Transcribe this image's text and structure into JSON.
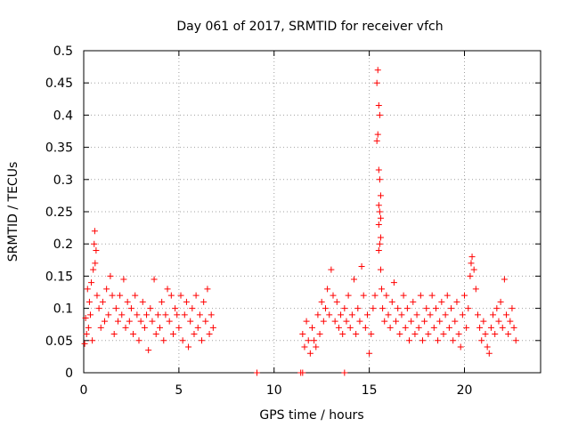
{
  "chart_data": {
    "type": "scatter",
    "title": "Day 061 of 2017, SRMTID for receiver vfch",
    "xlabel": "GPS time / hours",
    "ylabel": "SRMTID / TECUs",
    "xlim": [
      0,
      24
    ],
    "ylim": [
      0,
      0.5
    ],
    "x_ticks": [
      0,
      5,
      10,
      15,
      20
    ],
    "x_tick_labels": [
      "0",
      "5",
      "10",
      "15",
      "20"
    ],
    "y_ticks": [
      0,
      0.05,
      0.1,
      0.15,
      0.2,
      0.25,
      0.3,
      0.35,
      0.4,
      0.45,
      0.5
    ],
    "y_tick_labels": [
      "0",
      "0.05",
      "0.1",
      "0.15",
      "0.2",
      "0.25",
      "0.3",
      "0.35",
      "0.4",
      "0.45",
      "0.5"
    ],
    "grid": true,
    "marker": "plus",
    "color": "#ff0000",
    "series": [
      {
        "name": "SRMTID",
        "points": [
          [
            0.05,
            0.045
          ],
          [
            0.1,
            0.085
          ],
          [
            0.15,
            0.06
          ],
          [
            0.2,
            0.13
          ],
          [
            0.25,
            0.07
          ],
          [
            0.3,
            0.11
          ],
          [
            0.35,
            0.09
          ],
          [
            0.4,
            0.14
          ],
          [
            0.45,
            0.05
          ],
          [
            0.5,
            0.16
          ],
          [
            0.55,
            0.2
          ],
          [
            0.58,
            0.22
          ],
          [
            0.6,
            0.17
          ],
          [
            0.65,
            0.19
          ],
          [
            0.7,
            0.12
          ],
          [
            0.8,
            0.1
          ],
          [
            0.9,
            0.07
          ],
          [
            1.0,
            0.11
          ],
          [
            1.1,
            0.08
          ],
          [
            1.2,
            0.13
          ],
          [
            1.3,
            0.09
          ],
          [
            1.4,
            0.15
          ],
          [
            1.5,
            0.12
          ],
          [
            1.6,
            0.06
          ],
          [
            1.7,
            0.1
          ],
          [
            1.8,
            0.08
          ],
          [
            1.9,
            0.12
          ],
          [
            2.0,
            0.09
          ],
          [
            2.1,
            0.145
          ],
          [
            2.2,
            0.07
          ],
          [
            2.3,
            0.11
          ],
          [
            2.4,
            0.08
          ],
          [
            2.5,
            0.1
          ],
          [
            2.6,
            0.06
          ],
          [
            2.7,
            0.12
          ],
          [
            2.8,
            0.09
          ],
          [
            2.9,
            0.05
          ],
          [
            3.0,
            0.08
          ],
          [
            3.1,
            0.11
          ],
          [
            3.2,
            0.07
          ],
          [
            3.3,
            0.09
          ],
          [
            3.4,
            0.035
          ],
          [
            3.5,
            0.1
          ],
          [
            3.6,
            0.08
          ],
          [
            3.7,
            0.145
          ],
          [
            3.8,
            0.06
          ],
          [
            3.9,
            0.09
          ],
          [
            4.0,
            0.07
          ],
          [
            4.1,
            0.11
          ],
          [
            4.2,
            0.05
          ],
          [
            4.3,
            0.09
          ],
          [
            4.4,
            0.13
          ],
          [
            4.5,
            0.08
          ],
          [
            4.6,
            0.12
          ],
          [
            4.7,
            0.06
          ],
          [
            4.8,
            0.1
          ],
          [
            4.9,
            0.09
          ],
          [
            5.0,
            0.07
          ],
          [
            5.1,
            0.12
          ],
          [
            5.2,
            0.05
          ],
          [
            5.3,
            0.09
          ],
          [
            5.4,
            0.11
          ],
          [
            5.5,
            0.04
          ],
          [
            5.6,
            0.08
          ],
          [
            5.7,
            0.1
          ],
          [
            5.8,
            0.06
          ],
          [
            5.9,
            0.12
          ],
          [
            6.0,
            0.07
          ],
          [
            6.1,
            0.09
          ],
          [
            6.2,
            0.05
          ],
          [
            6.3,
            0.11
          ],
          [
            6.4,
            0.08
          ],
          [
            6.5,
            0.13
          ],
          [
            6.6,
            0.06
          ],
          [
            6.7,
            0.09
          ],
          [
            6.8,
            0.07
          ],
          [
            9.1,
            0.0
          ],
          [
            11.4,
            0.0
          ],
          [
            11.5,
            0.0
          ],
          [
            13.7,
            0.0
          ],
          [
            11.5,
            0.06
          ],
          [
            11.6,
            0.04
          ],
          [
            11.7,
            0.08
          ],
          [
            11.8,
            0.05
          ],
          [
            11.9,
            0.03
          ],
          [
            12.0,
            0.07
          ],
          [
            12.1,
            0.05
          ],
          [
            12.2,
            0.04
          ],
          [
            12.3,
            0.09
          ],
          [
            12.4,
            0.06
          ],
          [
            12.5,
            0.11
          ],
          [
            12.6,
            0.08
          ],
          [
            12.7,
            0.1
          ],
          [
            12.8,
            0.13
          ],
          [
            12.9,
            0.09
          ],
          [
            13.0,
            0.16
          ],
          [
            13.1,
            0.12
          ],
          [
            13.2,
            0.08
          ],
          [
            13.3,
            0.11
          ],
          [
            13.4,
            0.07
          ],
          [
            13.5,
            0.09
          ],
          [
            13.6,
            0.06
          ],
          [
            13.7,
            0.1
          ],
          [
            13.8,
            0.08
          ],
          [
            13.9,
            0.12
          ],
          [
            14.0,
            0.07
          ],
          [
            14.1,
            0.09
          ],
          [
            14.2,
            0.145
          ],
          [
            14.3,
            0.06
          ],
          [
            14.4,
            0.1
          ],
          [
            14.5,
            0.08
          ],
          [
            14.6,
            0.165
          ],
          [
            14.7,
            0.12
          ],
          [
            14.8,
            0.07
          ],
          [
            14.9,
            0.09
          ],
          [
            15.0,
            0.03
          ],
          [
            15.1,
            0.06
          ],
          [
            15.2,
            0.1
          ],
          [
            15.3,
            0.12
          ],
          [
            15.4,
            0.45
          ],
          [
            15.45,
            0.47
          ],
          [
            15.5,
            0.415
          ],
          [
            15.55,
            0.4
          ],
          [
            15.45,
            0.37
          ],
          [
            15.4,
            0.36
          ],
          [
            15.5,
            0.315
          ],
          [
            15.55,
            0.3
          ],
          [
            15.6,
            0.275
          ],
          [
            15.5,
            0.26
          ],
          [
            15.55,
            0.25
          ],
          [
            15.6,
            0.24
          ],
          [
            15.5,
            0.23
          ],
          [
            15.6,
            0.21
          ],
          [
            15.55,
            0.2
          ],
          [
            15.5,
            0.19
          ],
          [
            15.6,
            0.16
          ],
          [
            15.65,
            0.13
          ],
          [
            15.7,
            0.1
          ],
          [
            15.8,
            0.08
          ],
          [
            15.9,
            0.12
          ],
          [
            16.0,
            0.09
          ],
          [
            16.1,
            0.07
          ],
          [
            16.2,
            0.11
          ],
          [
            16.3,
            0.14
          ],
          [
            16.4,
            0.08
          ],
          [
            16.5,
            0.1
          ],
          [
            16.6,
            0.06
          ],
          [
            16.7,
            0.09
          ],
          [
            16.8,
            0.12
          ],
          [
            16.9,
            0.07
          ],
          [
            17.0,
            0.1
          ],
          [
            17.1,
            0.05
          ],
          [
            17.2,
            0.08
          ],
          [
            17.3,
            0.11
          ],
          [
            17.4,
            0.06
          ],
          [
            17.5,
            0.09
          ],
          [
            17.6,
            0.07
          ],
          [
            17.7,
            0.12
          ],
          [
            17.8,
            0.05
          ],
          [
            17.9,
            0.08
          ],
          [
            18.0,
            0.1
          ],
          [
            18.1,
            0.06
          ],
          [
            18.2,
            0.09
          ],
          [
            18.3,
            0.12
          ],
          [
            18.4,
            0.07
          ],
          [
            18.5,
            0.1
          ],
          [
            18.6,
            0.05
          ],
          [
            18.7,
            0.08
          ],
          [
            18.8,
            0.11
          ],
          [
            18.9,
            0.06
          ],
          [
            19.0,
            0.09
          ],
          [
            19.1,
            0.12
          ],
          [
            19.2,
            0.07
          ],
          [
            19.3,
            0.1
          ],
          [
            19.4,
            0.05
          ],
          [
            19.5,
            0.08
          ],
          [
            19.6,
            0.11
          ],
          [
            19.7,
            0.06
          ],
          [
            19.8,
            0.04
          ],
          [
            19.9,
            0.09
          ],
          [
            20.0,
            0.12
          ],
          [
            20.1,
            0.07
          ],
          [
            20.2,
            0.1
          ],
          [
            20.3,
            0.15
          ],
          [
            20.35,
            0.17
          ],
          [
            20.4,
            0.18
          ],
          [
            20.5,
            0.16
          ],
          [
            20.6,
            0.13
          ],
          [
            20.7,
            0.09
          ],
          [
            20.8,
            0.07
          ],
          [
            20.9,
            0.05
          ],
          [
            21.0,
            0.08
          ],
          [
            21.1,
            0.06
          ],
          [
            21.2,
            0.04
          ],
          [
            21.3,
            0.03
          ],
          [
            21.4,
            0.07
          ],
          [
            21.5,
            0.09
          ],
          [
            21.6,
            0.06
          ],
          [
            21.7,
            0.1
          ],
          [
            21.8,
            0.08
          ],
          [
            21.9,
            0.11
          ],
          [
            22.0,
            0.07
          ],
          [
            22.1,
            0.145
          ],
          [
            22.2,
            0.09
          ],
          [
            22.3,
            0.06
          ],
          [
            22.4,
            0.08
          ],
          [
            22.5,
            0.1
          ],
          [
            22.6,
            0.07
          ],
          [
            22.7,
            0.05
          ]
        ]
      }
    ]
  }
}
